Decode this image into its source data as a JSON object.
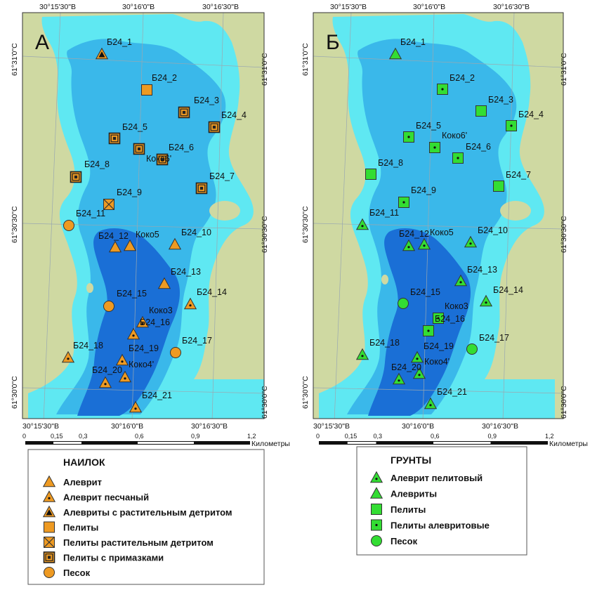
{
  "panels": [
    {
      "letter": "А",
      "coords": {
        "top": [
          "30°15'30\"В",
          "30°16'0\"В",
          "30°16'30\"В"
        ],
        "bottom": [
          "30°15'30\"В",
          "30°16'0\"В",
          "30°16'30\"В"
        ],
        "left": [
          "61°31'0\"С",
          "61°30'30\"С",
          "61°30'0\"С"
        ],
        "right": [
          "61°31'0\"С",
          "61°30'30\"С",
          "61°30'0\"С"
        ]
      },
      "scale": {
        "ticks": [
          "0",
          "0,15",
          "0,3",
          "0,6",
          "0,9",
          "1,2"
        ],
        "unit": "Километры"
      },
      "stations": [
        {
          "label": "Б24_1",
          "type": "aleurite-detritus"
        },
        {
          "label": "Б24_2",
          "type": "pelite"
        },
        {
          "label": "Б24_3",
          "type": "pelite-admixture"
        },
        {
          "label": "Б24_4",
          "type": "pelite-admixture"
        },
        {
          "label": "Б24_5",
          "type": "pelite-admixture"
        },
        {
          "label": "Б24_6",
          "type": "pelite-admixture"
        },
        {
          "label": "Коко6'",
          "type": "pelite-admixture"
        },
        {
          "label": "Б24_7",
          "type": "pelite-admixture"
        },
        {
          "label": "Б24_8",
          "type": "pelite-admixture"
        },
        {
          "label": "Б24_9",
          "type": "pelite-detritus"
        },
        {
          "label": "Б24_11",
          "type": "sand"
        },
        {
          "label": "Б24_12",
          "type": "aleurite"
        },
        {
          "label": "Коко5",
          "type": "aleurite"
        },
        {
          "label": "Б24_10",
          "type": "aleurite"
        },
        {
          "label": "Б24_13",
          "type": "aleurite"
        },
        {
          "label": "Б24_14",
          "type": "aleurite-sandy"
        },
        {
          "label": "Б24_15",
          "type": "sand"
        },
        {
          "label": "Коко3",
          "type": "aleurite-sandy"
        },
        {
          "label": "Б24_16",
          "type": "aleurite-sandy"
        },
        {
          "label": "Б24_17",
          "type": "sand"
        },
        {
          "label": "Б24_18",
          "type": "aleurite-sandy"
        },
        {
          "label": "Б24_19",
          "type": "aleurite-sandy"
        },
        {
          "label": "Коко4'",
          "type": "aleurite-sandy"
        },
        {
          "label": "Б24_20",
          "type": "aleurite-sandy"
        },
        {
          "label": "Б24_21",
          "type": "aleurite-sandy"
        }
      ],
      "legend": {
        "title": "НАИЛОК",
        "items": [
          {
            "type": "aleurite",
            "label": "Алеврит"
          },
          {
            "type": "aleurite-sandy",
            "label": "Алеврит песчаный"
          },
          {
            "type": "aleurite-detritus",
            "label": "Алевриты с растительным детритом"
          },
          {
            "type": "pelite",
            "label": "Пелиты"
          },
          {
            "type": "pelite-detritus",
            "label": "Пелиты растительным детритом"
          },
          {
            "type": "pelite-admixture",
            "label": "Пелиты с примазками"
          },
          {
            "type": "sand",
            "label": "Песок"
          }
        ]
      }
    },
    {
      "letter": "Б",
      "coords": {
        "top": [
          "30°15'30\"В",
          "30°16'0\"В",
          "30°16'30\"В"
        ],
        "bottom": [
          "30°15'30\"В",
          "30°16'0\"В",
          "30°16'30\"В"
        ],
        "left": [
          "61°31'0\"С",
          "61°30'30\"С",
          "61°30'0\"С"
        ],
        "right": [
          "61°31'0\"С",
          "61°30'30\"С",
          "61°30'0\"С"
        ]
      },
      "scale": {
        "ticks": [
          "0",
          "0,15",
          "0,3",
          "0,6",
          "0,9",
          "1,2"
        ],
        "unit": "Километры"
      },
      "stations": [
        {
          "label": "Б24_1",
          "type": "g-aleurite"
        },
        {
          "label": "Б24_2",
          "type": "g-pelite-aleuritic"
        },
        {
          "label": "Б24_3",
          "type": "g-pelite"
        },
        {
          "label": "Б24_4",
          "type": "g-pelite-aleuritic"
        },
        {
          "label": "Б24_5",
          "type": "g-pelite-aleuritic"
        },
        {
          "label": "Коко6'",
          "type": "g-pelite-aleuritic"
        },
        {
          "label": "Б24_6",
          "type": "g-pelite-aleuritic"
        },
        {
          "label": "Б24_8",
          "type": "g-pelite"
        },
        {
          "label": "Б24_7",
          "type": "g-pelite"
        },
        {
          "label": "Б24_9",
          "type": "g-pelite-aleuritic"
        },
        {
          "label": "Б24_11",
          "type": "g-aleurite-pelitic"
        },
        {
          "label": "Б24_12",
          "type": "g-aleurite-pelitic"
        },
        {
          "label": "Коко5",
          "type": "g-aleurite-pelitic"
        },
        {
          "label": "Б24_10",
          "type": "g-aleurite-pelitic"
        },
        {
          "label": "Б24_13",
          "type": "g-aleurite-pelitic"
        },
        {
          "label": "Б24_14",
          "type": "g-aleurite-pelitic"
        },
        {
          "label": "Б24_15",
          "type": "g-sand"
        },
        {
          "label": "Коко3",
          "type": "g-pelite-aleuritic"
        },
        {
          "label": "Б24_16",
          "type": "g-pelite-aleuritic"
        },
        {
          "label": "Б24_17",
          "type": "g-sand"
        },
        {
          "label": "Б24_18",
          "type": "g-aleurite-pelitic"
        },
        {
          "label": "Б24_19",
          "type": "g-aleurite-pelitic"
        },
        {
          "label": "Коко4'",
          "type": "g-aleurite-pelitic"
        },
        {
          "label": "Б24_20",
          "type": "g-aleurite-pelitic"
        },
        {
          "label": "Б24_21",
          "type": "g-aleurite-pelitic"
        }
      ],
      "legend": {
        "title": "ГРУНТЫ",
        "items": [
          {
            "type": "g-aleurite-pelitic",
            "label": "Алеврит пелитовый"
          },
          {
            "type": "g-aleurite",
            "label": "Алевриты"
          },
          {
            "type": "g-pelite",
            "label": "Пелиты"
          },
          {
            "type": "g-pelite-aleuritic",
            "label": "Пелиты алевритовые"
          },
          {
            "type": "g-sand",
            "label": "Песок"
          }
        ]
      }
    }
  ],
  "colors": {
    "land": "#cfd9a2",
    "water_shallow": "#5fe8f2",
    "water_mid": "#3ab8ea",
    "water_deep": "#1a6fd6",
    "orange": "#ee9a22",
    "green": "#33dd33"
  }
}
